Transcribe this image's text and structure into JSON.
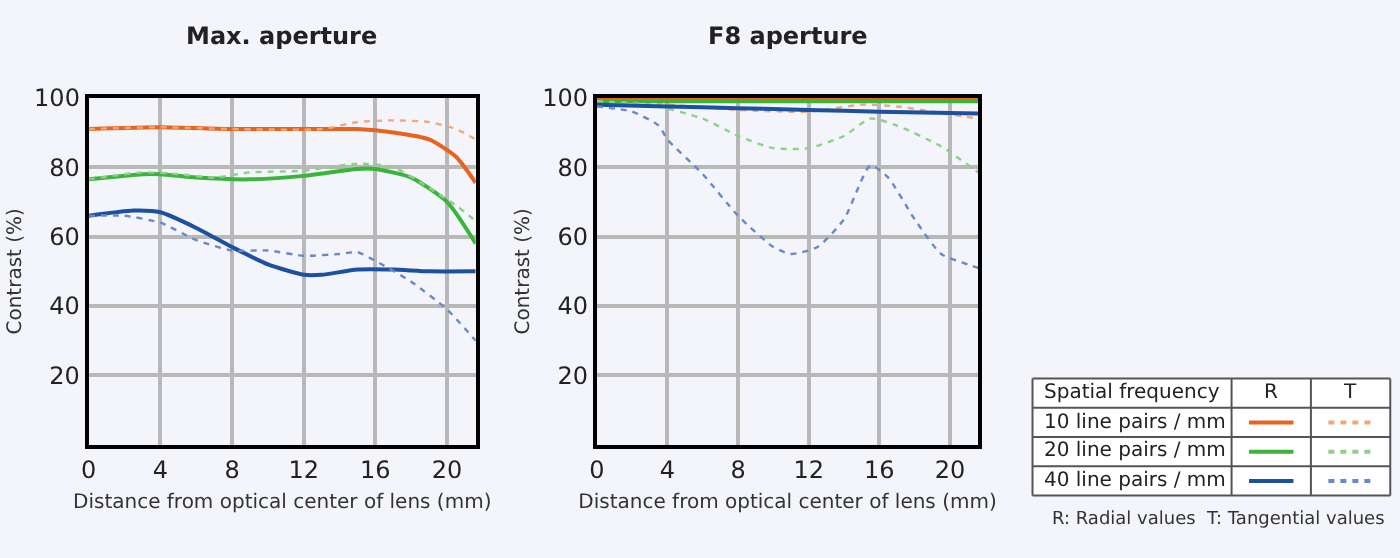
{
  "chart_data": [
    {
      "type": "line",
      "title": "Max. aperture",
      "xlabel": "Distance from optical center of lens (mm)",
      "ylabel": "Contrast (%)",
      "xlim": [
        0,
        21.6
      ],
      "ylim": [
        0,
        100
      ],
      "xticks": [
        0,
        4,
        8,
        12,
        16,
        20
      ],
      "yticks": [
        {
          "value": 0,
          "label": null
        },
        20,
        40,
        60,
        80,
        100
      ],
      "grid": true,
      "legend": false,
      "series": [
        {
          "color": "#e8641e",
          "line_style": "solid",
          "x": [
            0,
            4,
            8,
            12,
            14,
            15,
            17,
            19,
            20.5,
            21.6
          ],
          "values": [
            91,
            91.5,
            91,
            91,
            91,
            91,
            90,
            88,
            83,
            75.5
          ]
        },
        {
          "color": "#f0a878",
          "line_style": "dotted",
          "x": [
            0,
            4,
            8,
            13,
            15,
            17,
            19,
            20.5,
            21.6
          ],
          "values": [
            91,
            91.5,
            91,
            91,
            93,
            93.5,
            93,
            91,
            88
          ]
        },
        {
          "color": "#3cb43c",
          "line_style": "solid",
          "x": [
            0,
            3,
            4,
            6,
            9,
            12,
            15,
            16,
            18,
            20,
            21.6
          ],
          "values": [
            76.5,
            78,
            78,
            77,
            76.5,
            77.5,
            79.5,
            79.5,
            77,
            70,
            58
          ]
        },
        {
          "color": "#8cd08c",
          "line_style": "dotted",
          "x": [
            0,
            3,
            5,
            7,
            9,
            12,
            15,
            17,
            19,
            20.5,
            21.6
          ],
          "values": [
            76.5,
            78.5,
            78,
            77,
            78.5,
            79,
            81,
            80,
            74,
            69,
            64.5
          ]
        },
        {
          "color": "#1e50a0",
          "line_style": "solid",
          "x": [
            0,
            2.5,
            4,
            6,
            8,
            10,
            12,
            13,
            15,
            17,
            19,
            21.6
          ],
          "values": [
            66,
            67.5,
            67,
            62.5,
            57,
            52,
            49,
            49,
            50.5,
            50.5,
            50,
            50
          ]
        },
        {
          "color": "#6a88c8",
          "line_style": "dotted",
          "x": [
            0,
            2,
            4,
            6,
            8,
            10,
            12,
            14,
            15,
            16,
            18,
            20,
            21.6
          ],
          "values": [
            66,
            66,
            64,
            59,
            56,
            56,
            54.5,
            55,
            55.5,
            53,
            47,
            39,
            30
          ]
        }
      ]
    },
    {
      "type": "line",
      "title": "F8 aperture",
      "xlabel": "Distance from optical center of lens (mm)",
      "ylabel": "Contrast (%)",
      "xlim": [
        0,
        21.6
      ],
      "ylim": [
        0,
        100
      ],
      "xticks": [
        0,
        4,
        8,
        12,
        16,
        20
      ],
      "yticks": [
        {
          "value": 0,
          "label": null
        },
        20,
        40,
        60,
        80,
        100
      ],
      "grid": true,
      "legend": "right",
      "legend_title": "Spatial frequency",
      "annotations": [
        "R",
        "T",
        "R: Radial values  T: Tangential values"
      ],
      "series": [
        {
          "name": "10 line pairs / mm",
          "color": "#e8641e",
          "line_style": "solid",
          "x": [
            0,
            8,
            16,
            21.6
          ],
          "values": [
            99.5,
            99.5,
            99.5,
            99.5
          ]
        },
        {
          "color": "#f0a878",
          "line_style": "dotted",
          "x": [
            0,
            4,
            8,
            12,
            15,
            17,
            19,
            21.6
          ],
          "values": [
            99,
            98,
            96.5,
            96,
            98,
            97.5,
            96,
            94
          ]
        },
        {
          "name": "20 line pairs / mm",
          "color": "#3cb43c",
          "line_style": "solid",
          "x": [
            0,
            8,
            16,
            21.6
          ],
          "values": [
            99,
            99,
            99,
            99
          ]
        },
        {
          "color": "#8cd08c",
          "line_style": "dotted",
          "x": [
            0,
            3,
            6,
            8,
            10,
            12,
            14,
            15.5,
            17,
            19.5,
            21.6
          ],
          "values": [
            99,
            98,
            94,
            89,
            85.5,
            85.5,
            89,
            94,
            92,
            86,
            78.5
          ]
        },
        {
          "name": "40 line pairs / mm",
          "color": "#1e50a0",
          "line_style": "solid",
          "x": [
            0,
            4,
            8,
            12,
            16,
            21.6
          ],
          "values": [
            98,
            97.5,
            97,
            96.5,
            96,
            95.5
          ]
        },
        {
          "color": "#6a88c8",
          "line_style": "dotted",
          "x": [
            0,
            2,
            3.5,
            4,
            6,
            8,
            10,
            11,
            12.5,
            14,
            15.5,
            16.5,
            18,
            19.5,
            21,
            21.6
          ],
          "values": [
            97.5,
            96,
            92,
            88,
            78,
            66,
            57,
            55,
            57,
            65,
            80.5,
            77,
            65,
            55,
            52,
            51
          ]
        }
      ]
    }
  ]
}
